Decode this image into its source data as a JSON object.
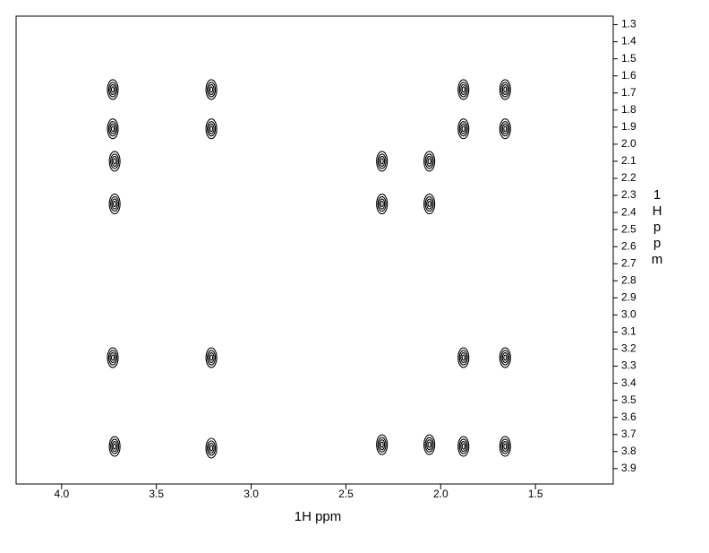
{
  "chart_data": {
    "type": "scatter",
    "x_label": "1H ppm",
    "y_label": "1H ppm",
    "xlim": [
      4.24,
      1.09
    ],
    "ylim": [
      3.99,
      1.25
    ],
    "xticks": [
      {
        "value": 4.0,
        "label": "4.0"
      },
      3.5,
      {
        "value": 3.0,
        "label": "3.0"
      },
      2.5,
      {
        "value": 2.0,
        "label": "2.0"
      },
      1.5
    ],
    "yticks": [
      1.3,
      1.4,
      1.5,
      1.6,
      1.7,
      1.8,
      1.9,
      {
        "value": 2.0,
        "label": "2.0"
      },
      2.1,
      2.2,
      2.3,
      2.4,
      2.5,
      2.6,
      2.7,
      2.8,
      2.9,
      {
        "value": 3.0,
        "label": "3.0"
      },
      3.1,
      3.2,
      3.3,
      3.4,
      3.5,
      3.6,
      3.7,
      3.8,
      3.9
    ],
    "color": "#000000",
    "x": [
      3.73,
      3.73,
      3.72,
      3.72,
      3.73,
      3.72,
      3.21,
      3.21,
      3.21,
      3.21,
      2.31,
      2.31,
      2.31,
      2.06,
      2.06,
      2.06,
      1.88,
      1.88,
      1.88,
      1.88,
      1.66,
      1.66,
      1.66,
      1.66
    ],
    "values": [
      1.68,
      1.91,
      2.1,
      2.35,
      3.25,
      3.77,
      1.68,
      1.91,
      3.25,
      3.78,
      2.1,
      2.35,
      3.76,
      2.1,
      2.35,
      3.76,
      1.68,
      1.91,
      3.25,
      3.77,
      1.68,
      1.91,
      3.25,
      3.77
    ]
  }
}
